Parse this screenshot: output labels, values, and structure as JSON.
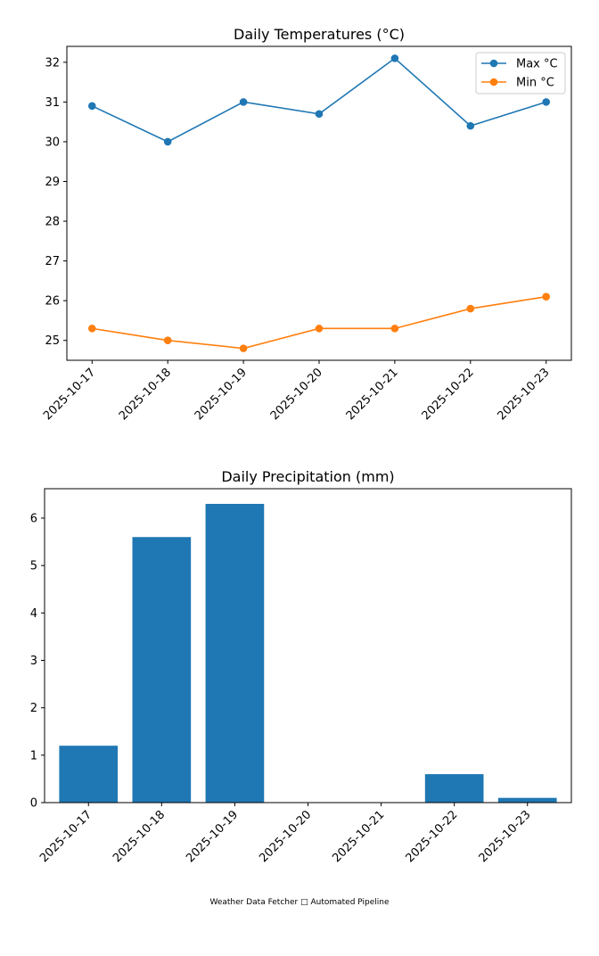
{
  "chart_data": [
    {
      "type": "line",
      "title": "Daily Temperatures (°C)",
      "xlabel": "",
      "ylabel": "",
      "categories": [
        "2025-10-17",
        "2025-10-18",
        "2025-10-19",
        "2025-10-20",
        "2025-10-21",
        "2025-10-22",
        "2025-10-23"
      ],
      "series": [
        {
          "name": "Max °C",
          "color": "#1f77b4",
          "values": [
            30.9,
            30.0,
            31.0,
            30.7,
            32.1,
            30.4,
            31.0
          ]
        },
        {
          "name": "Min °C",
          "color": "#ff7f0e",
          "values": [
            25.3,
            25.0,
            24.8,
            25.3,
            25.3,
            25.8,
            26.1
          ]
        }
      ],
      "ylim": [
        24.5,
        32.4
      ],
      "yticks": [
        25,
        26,
        27,
        28,
        29,
        30,
        31,
        32
      ],
      "legend": "top-right",
      "grid": false
    },
    {
      "type": "bar",
      "title": "Daily Precipitation (mm)",
      "xlabel": "",
      "ylabel": "",
      "categories": [
        "2025-10-17",
        "2025-10-18",
        "2025-10-19",
        "2025-10-20",
        "2025-10-21",
        "2025-10-22",
        "2025-10-23"
      ],
      "values": [
        1.2,
        5.6,
        6.3,
        0.0,
        0.0,
        0.6,
        0.1
      ],
      "color": "#1f77b4",
      "ylim": [
        0,
        6.62
      ],
      "yticks": [
        0,
        1,
        2,
        3,
        4,
        5,
        6
      ],
      "grid": false
    }
  ],
  "footer": "Weather Data Fetcher □ Automated Pipeline"
}
